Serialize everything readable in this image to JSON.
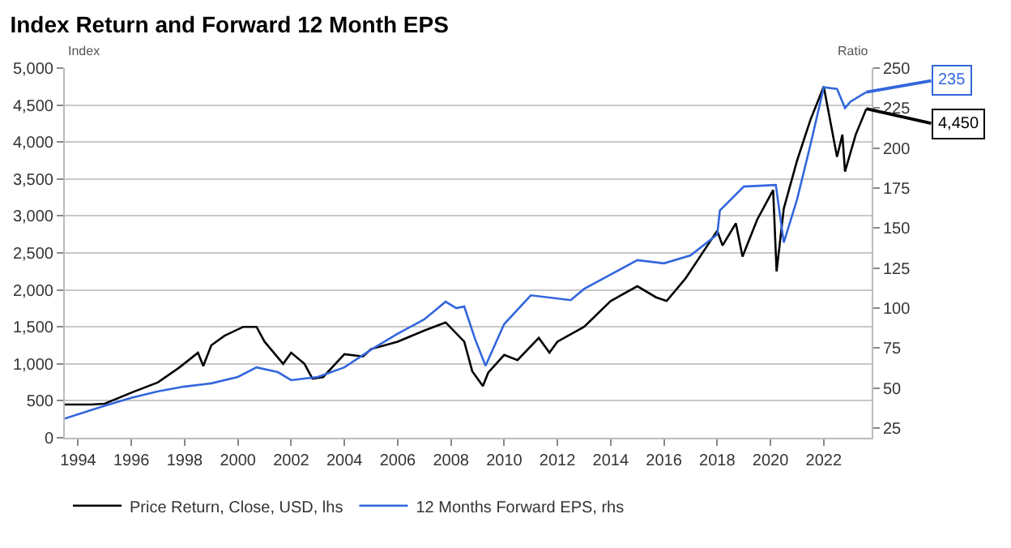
{
  "chart_data": {
    "type": "line",
    "title": "Index Return and Forward 12 Month EPS",
    "ylabel": "Index",
    "y2label": "Ratio",
    "xlim": [
      1993.5,
      2023.8
    ],
    "xticks": [
      {
        "value": 1994,
        "label": "1994"
      },
      {
        "value": 1996,
        "label": "1996"
      },
      {
        "value": 1998,
        "label": "1998"
      },
      {
        "value": 2000,
        "label": "2000"
      },
      {
        "value": 2002,
        "label": "2002"
      },
      {
        "value": 2004,
        "label": "2004"
      },
      {
        "value": 2006,
        "label": "2006"
      },
      {
        "value": 2008,
        "label": "2008"
      },
      {
        "value": 2010,
        "label": "2010"
      },
      {
        "value": 2012,
        "label": "2012"
      },
      {
        "value": 2014,
        "label": "2014"
      },
      {
        "value": 2016,
        "label": "2016"
      },
      {
        "value": 2018,
        "label": "2018"
      },
      {
        "value": 2020,
        "label": "2020"
      },
      {
        "value": 2022,
        "label": "2022"
      }
    ],
    "ylim": [
      0,
      5000
    ],
    "yticks": [
      0,
      500,
      {
        "value": 1000,
        "label": "1,000"
      },
      {
        "value": 1500,
        "label": "1,500"
      },
      {
        "value": 2000,
        "label": "2,000"
      },
      {
        "value": 2500,
        "label": "2,500"
      },
      {
        "value": 3000,
        "label": "3,000"
      },
      {
        "value": 3500,
        "label": "3,500"
      },
      {
        "value": 4000,
        "label": "4,000"
      },
      {
        "value": 4500,
        "label": "4,500"
      },
      {
        "value": 5000,
        "label": "5,000"
      }
    ],
    "y2lim": [
      19,
      250
    ],
    "y2ticks": [
      25,
      50,
      75,
      100,
      125,
      150,
      175,
      200,
      225,
      250
    ],
    "grid": "y",
    "legend": "bottom left",
    "marker": "none",
    "line_style": "solid",
    "series": [
      {
        "name": "Price Return, Close, USD, lhs",
        "color": "#000000",
        "x": [
          1993.5,
          1994.5,
          1995,
          1996,
          1997,
          1997.8,
          1998.5,
          1998.7,
          1999,
          1999.5,
          2000.2,
          2000.7,
          2001,
          2001.7,
          2002,
          2002.5,
          2002.8,
          2003.2,
          2004,
          2004.7,
          2005,
          2006,
          2007,
          2007.8,
          2008.5,
          2008.8,
          2009.2,
          2009.4,
          2010,
          2010.5,
          2011.3,
          2011.7,
          2012,
          2013,
          2014,
          2015,
          2015.7,
          2016.1,
          2016.8,
          2018,
          2018.2,
          2018.7,
          2018.95,
          2019.5,
          2020.1,
          2020.23,
          2020.5,
          2021,
          2021.5,
          2022,
          2022.5,
          2022.7,
          2022.8,
          2023.2,
          2023.6
        ],
        "values": [
          450,
          450,
          460,
          610,
          750,
          950,
          1150,
          970,
          1250,
          1380,
          1500,
          1500,
          1300,
          1000,
          1150,
          1000,
          800,
          820,
          1130,
          1100,
          1200,
          1300,
          1450,
          1560,
          1300,
          900,
          700,
          880,
          1120,
          1050,
          1350,
          1150,
          1300,
          1500,
          1850,
          2050,
          1900,
          1850,
          2150,
          2800,
          2600,
          2900,
          2450,
          2950,
          3350,
          2250,
          3100,
          3750,
          4300,
          4750,
          3800,
          4100,
          3600,
          4100,
          4450
        ],
        "value_labels": [
          null,
          null,
          null,
          null,
          null,
          null,
          null,
          null,
          null,
          null,
          null,
          null,
          null,
          null,
          null,
          null,
          null,
          null,
          null,
          null,
          null,
          null,
          null,
          null,
          null,
          null,
          null,
          null,
          null,
          null,
          null,
          null,
          null,
          null,
          null,
          null,
          null,
          null,
          null,
          null,
          null,
          null,
          null,
          null,
          null,
          null,
          null,
          null,
          null,
          null,
          null,
          null,
          null,
          null,
          "4,450"
        ]
      },
      {
        "name": "12 Months Forward EPS, rhs",
        "color": "#3366dd",
        "axis": "y2",
        "x": [
          1993.5,
          1995,
          1996,
          1997,
          1998,
          1999,
          2000,
          2000.7,
          2001.5,
          2002,
          2003,
          2004,
          2005,
          2006,
          2007,
          2007.8,
          2008.2,
          2008.5,
          2008.9,
          2009.3,
          2010,
          2011,
          2012.5,
          2013,
          2014,
          2015,
          2016,
          2017,
          2018,
          2018.1,
          2019,
          2020.2,
          2020.5,
          2021,
          2021.5,
          2022,
          2022.5,
          2022.8,
          2023,
          2023.6
        ],
        "values": [
          31,
          39,
          44,
          48,
          51,
          53,
          57,
          63,
          60,
          55,
          57,
          63,
          74,
          84,
          93,
          104,
          100,
          101,
          81,
          64,
          90,
          108,
          105,
          112,
          121,
          130,
          128,
          133,
          146,
          161,
          176,
          177,
          141,
          168,
          202,
          238,
          237,
          225,
          229,
          235
        ],
        "value_labels": [
          null,
          null,
          null,
          null,
          null,
          null,
          null,
          null,
          null,
          null,
          null,
          null,
          null,
          null,
          null,
          null,
          null,
          null,
          null,
          null,
          null,
          null,
          null,
          null,
          null,
          null,
          null,
          null,
          null,
          null,
          null,
          null,
          null,
          null,
          null,
          null,
          null,
          null,
          null,
          "235"
        ]
      }
    ]
  }
}
